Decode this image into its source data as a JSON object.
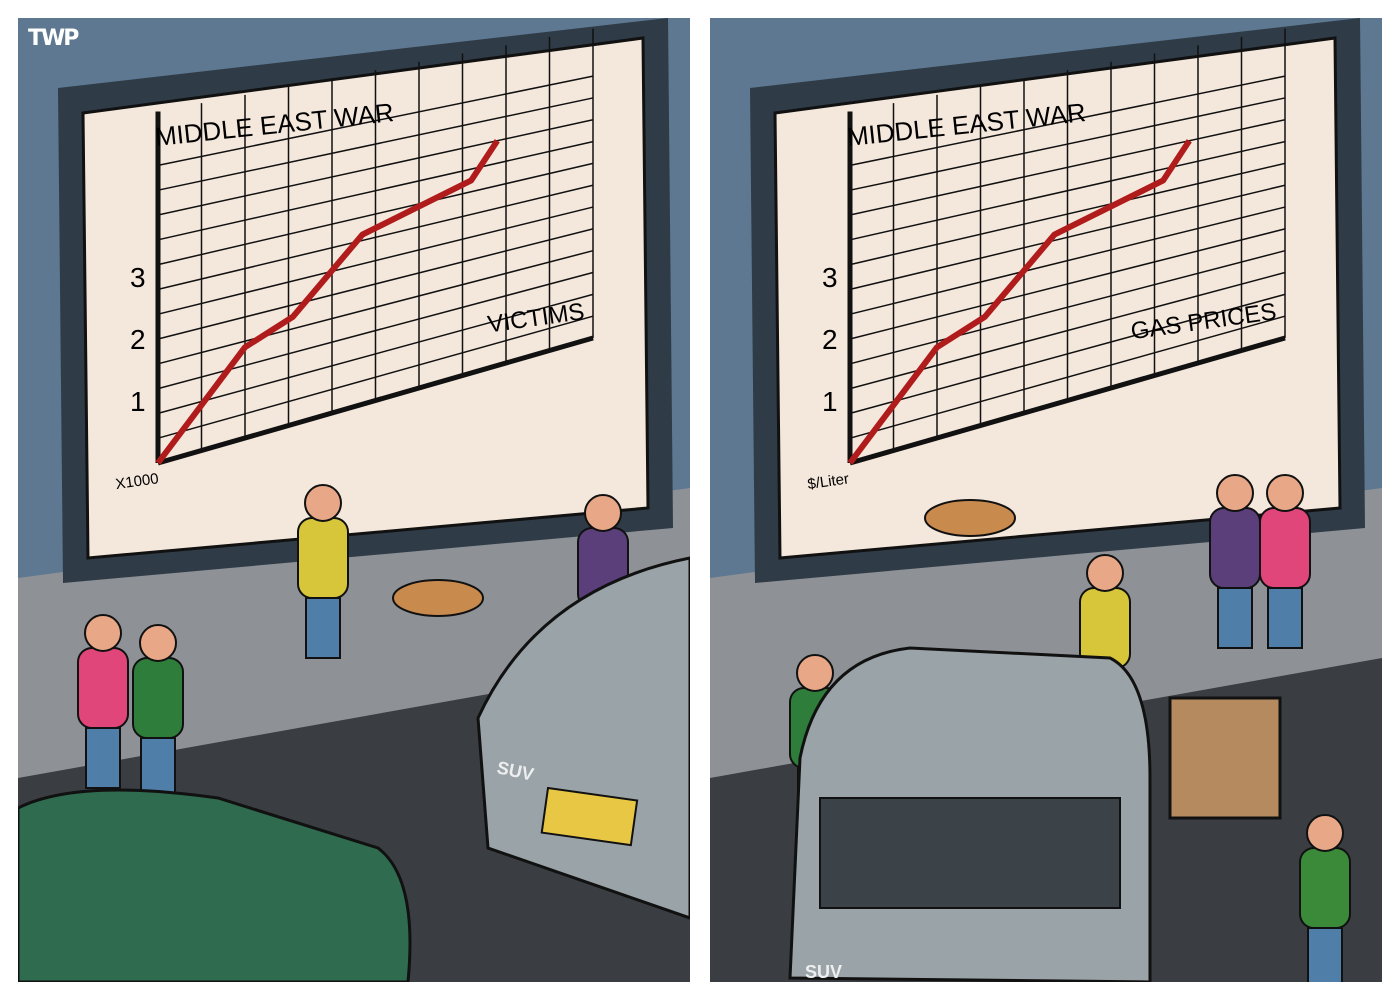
{
  "logo": "TWP",
  "colors": {
    "wall": "#5d7890",
    "screen": "#f4e7dc",
    "frame": "#2f3b47",
    "line": "#b01c1c",
    "sidewalk": "#8e9196",
    "road": "#3a3d42",
    "car_green": "#2f6b4f",
    "car_gray": "#9aa3a8"
  },
  "panels": [
    {
      "billboard": {
        "title": "MIDDLE EAST WAR",
        "xlabel": "VICTIMS",
        "unit": "X1000",
        "yticks": [
          "1",
          "2",
          "3"
        ]
      },
      "car_badge": "SUV"
    },
    {
      "billboard": {
        "title": "MIDDLE EAST WAR",
        "xlabel": "GAS PRICES",
        "unit": "$/Liter",
        "yticks": [
          "1",
          "2",
          "3"
        ]
      },
      "car_badge": "SUV"
    }
  ],
  "chart_data": [
    {
      "type": "line",
      "title": "MIDDLE EAST WAR",
      "xlabel": "VICTIMS",
      "ylabel": "X1000",
      "ylim": [
        0,
        4.2
      ],
      "xlim": [
        0,
        10
      ],
      "grid": true,
      "x": [
        0,
        2,
        3.1,
        4.7,
        7.2,
        7.8
      ],
      "y": [
        0,
        1.5,
        1.8,
        2.9,
        3.4,
        4.0
      ]
    },
    {
      "type": "line",
      "title": "MIDDLE EAST WAR",
      "xlabel": "GAS PRICES",
      "ylabel": "$/Liter",
      "ylim": [
        0,
        4.2
      ],
      "xlim": [
        0,
        10
      ],
      "grid": true,
      "x": [
        0,
        2,
        3.1,
        4.7,
        7.2,
        7.8
      ],
      "y": [
        0,
        1.5,
        1.8,
        2.9,
        3.4,
        4.0
      ]
    }
  ]
}
